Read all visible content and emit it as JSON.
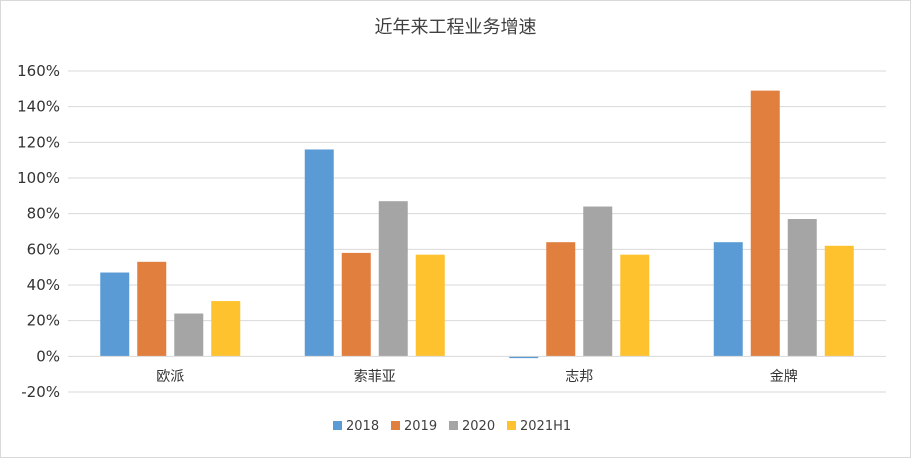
{
  "chart_data": {
    "type": "bar",
    "title": "近年来工程业务增速",
    "categories": [
      "欧派",
      "索菲亚",
      "志邦",
      "金牌"
    ],
    "series": [
      {
        "name": "2018",
        "color": "#5b9bd5",
        "values": [
          47,
          116,
          -1,
          64
        ]
      },
      {
        "name": "2019",
        "color": "#e07f3e",
        "values": [
          53,
          58,
          64,
          149
        ]
      },
      {
        "name": "2020",
        "color": "#a5a5a5",
        "values": [
          24,
          87,
          84,
          77
        ]
      },
      {
        "name": "2021H1",
        "color": "#fec22f",
        "values": [
          31,
          57,
          57,
          62
        ]
      }
    ],
    "ylim": [
      -20,
      160
    ],
    "y_ticks": [
      160,
      140,
      120,
      100,
      80,
      60,
      40,
      20,
      0,
      -20
    ],
    "y_tick_labels": [
      "160%",
      "140%",
      "120%",
      "100%",
      "80%",
      "60%",
      "40%",
      "20%",
      "0%",
      "-20%"
    ],
    "unit": "%",
    "grid": true,
    "legend_position": "bottom"
  }
}
